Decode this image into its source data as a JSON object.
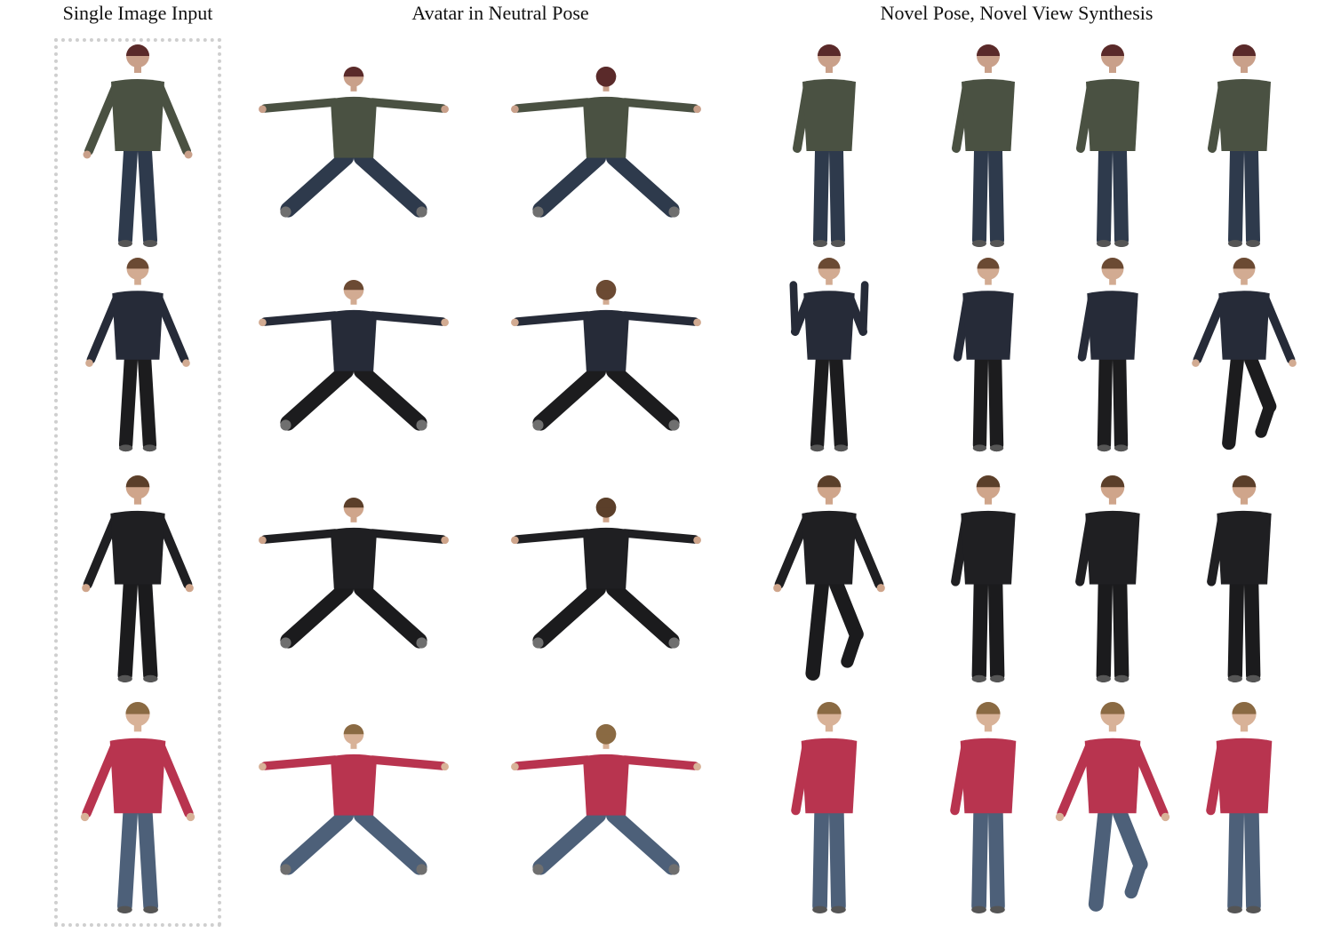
{
  "headers": {
    "input": "Single Image Input",
    "neutral": "Avatar in Neutral Pose",
    "novel": "Novel Pose, Novel View Synthesis"
  },
  "rows": [
    {
      "subject": "woman-olive-top-jeans",
      "shirt": "#4a5142",
      "pants": "#2e3a4c",
      "hair": "#5a2a2a",
      "skin": "#c9a08a"
    },
    {
      "subject": "woman-navy-top-black-pants",
      "shirt": "#262b38",
      "pants": "#1c1c1e",
      "hair": "#6b4a33",
      "skin": "#d2ab92"
    },
    {
      "subject": "woman-black-top-black-pants",
      "shirt": "#1f1f22",
      "pants": "#1b1b1d",
      "hair": "#5b3f2a",
      "skin": "#cfa58b"
    },
    {
      "subject": "woman-red-top-jeans",
      "shirt": "#b8344f",
      "pants": "#4d6079",
      "hair": "#8a6a43",
      "skin": "#d8b298"
    }
  ]
}
